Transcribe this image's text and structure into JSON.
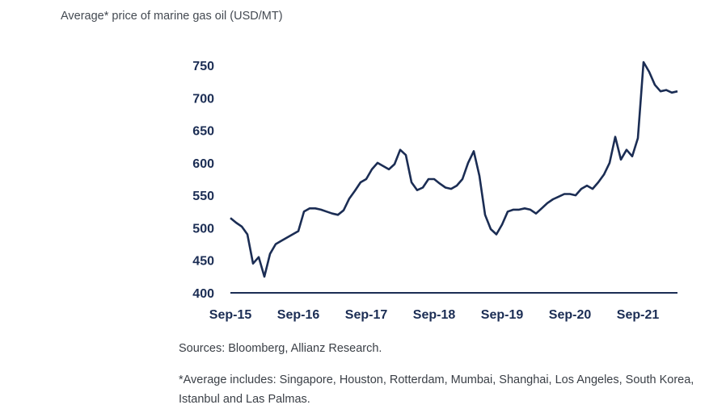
{
  "title": "Average* price of marine gas oil (USD/MT)",
  "sources": "Sources: Bloomberg, Allianz Research.",
  "footnote": "*Average includes: Singapore, Houston, Rotterdam, Mumbai, Shanghai, Los Angeles, South Korea, Istanbul and Las Palmas.",
  "colors": {
    "line": "#1b2d54",
    "text": "#444a52"
  },
  "chart_data": {
    "type": "line",
    "title": "Average* price of marine gas oil (USD/MT)",
    "xlabel": "",
    "ylabel": "",
    "ylim": [
      400,
      750
    ],
    "y_ticks": [
      400,
      450,
      500,
      550,
      600,
      650,
      700,
      750
    ],
    "x_tick_labels": [
      "Sep-15",
      "Sep-16",
      "Sep-17",
      "Sep-18",
      "Sep-19",
      "Sep-20",
      "Sep-21"
    ],
    "xlim": [
      "2015-09",
      "2022-04"
    ],
    "grid": false,
    "series": [
      {
        "name": "",
        "x": [
          "2015-09",
          "2015-10",
          "2015-11",
          "2015-12",
          "2016-01",
          "2016-02",
          "2016-03",
          "2016-04",
          "2016-05",
          "2016-06",
          "2016-07",
          "2016-08",
          "2016-09",
          "2016-10",
          "2016-11",
          "2016-12",
          "2017-01",
          "2017-02",
          "2017-03",
          "2017-04",
          "2017-05",
          "2017-06",
          "2017-07",
          "2017-08",
          "2017-09",
          "2017-10",
          "2017-11",
          "2017-12",
          "2018-01",
          "2018-02",
          "2018-03",
          "2018-04",
          "2018-05",
          "2018-06",
          "2018-07",
          "2018-08",
          "2018-09",
          "2018-10",
          "2018-11",
          "2018-12",
          "2019-01",
          "2019-02",
          "2019-03",
          "2019-04",
          "2019-05",
          "2019-06",
          "2019-07",
          "2019-08",
          "2019-09",
          "2019-10",
          "2019-11",
          "2019-12",
          "2020-01",
          "2020-02",
          "2020-03",
          "2020-04",
          "2020-05",
          "2020-06",
          "2020-07",
          "2020-08",
          "2020-09",
          "2020-10",
          "2020-11",
          "2020-12",
          "2021-01",
          "2021-02",
          "2021-03",
          "2021-04",
          "2021-05",
          "2021-06",
          "2021-07",
          "2021-08",
          "2021-09",
          "2021-10",
          "2021-11",
          "2021-12",
          "2022-01",
          "2022-02",
          "2022-03",
          "2022-04"
        ],
        "values": [
          515,
          508,
          502,
          490,
          445,
          455,
          425,
          460,
          475,
          480,
          485,
          490,
          495,
          525,
          530,
          530,
          528,
          525,
          522,
          520,
          527,
          545,
          557,
          570,
          575,
          590,
          600,
          595,
          590,
          598,
          620,
          612,
          570,
          558,
          562,
          575,
          575,
          568,
          562,
          560,
          565,
          575,
          600,
          618,
          580,
          520,
          498,
          490,
          505,
          525,
          528,
          528,
          530,
          528,
          522,
          530,
          538,
          544,
          548,
          552,
          552,
          550,
          560,
          565,
          560,
          570,
          582,
          600,
          640,
          605,
          620,
          610,
          638,
          755,
          740,
          720,
          710,
          712,
          708,
          710
        ]
      }
    ]
  }
}
